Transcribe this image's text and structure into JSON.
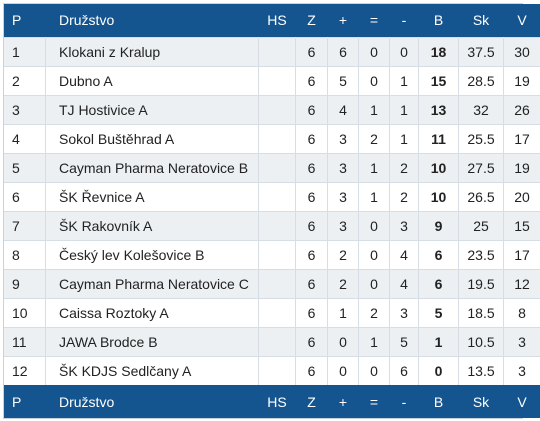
{
  "headers": {
    "p": "P",
    "team": "Družstvo",
    "hs": "HS",
    "z": "Z",
    "w": "+",
    "d": "=",
    "l": "-",
    "b": "B",
    "sk": "Sk",
    "v": "V"
  },
  "rows": [
    {
      "p": "1",
      "team": "Klokani z Kralup",
      "hs": "",
      "z": "6",
      "w": "6",
      "d": "0",
      "l": "0",
      "b": "18",
      "sk": "37.5",
      "v": "30"
    },
    {
      "p": "2",
      "team": "Dubno A",
      "hs": "",
      "z": "6",
      "w": "5",
      "d": "0",
      "l": "1",
      "b": "15",
      "sk": "28.5",
      "v": "19"
    },
    {
      "p": "3",
      "team": "TJ Hostivice A",
      "hs": "",
      "z": "6",
      "w": "4",
      "d": "1",
      "l": "1",
      "b": "13",
      "sk": "32",
      "v": "26"
    },
    {
      "p": "4",
      "team": "Sokol Buštěhrad A",
      "hs": "",
      "z": "6",
      "w": "3",
      "d": "2",
      "l": "1",
      "b": "11",
      "sk": "25.5",
      "v": "17"
    },
    {
      "p": "5",
      "team": "Cayman Pharma Neratovice B",
      "hs": "",
      "z": "6",
      "w": "3",
      "d": "1",
      "l": "2",
      "b": "10",
      "sk": "27.5",
      "v": "19"
    },
    {
      "p": "6",
      "team": "ŠK Řevnice A",
      "hs": "",
      "z": "6",
      "w": "3",
      "d": "1",
      "l": "2",
      "b": "10",
      "sk": "26.5",
      "v": "20"
    },
    {
      "p": "7",
      "team": "ŠK Rakovník A",
      "hs": "",
      "z": "6",
      "w": "3",
      "d": "0",
      "l": "3",
      "b": "9",
      "sk": "25",
      "v": "15"
    },
    {
      "p": "8",
      "team": "Český lev Kolešovice B",
      "hs": "",
      "z": "6",
      "w": "2",
      "d": "0",
      "l": "4",
      "b": "6",
      "sk": "23.5",
      "v": "17"
    },
    {
      "p": "9",
      "team": "Cayman Pharma Neratovice C",
      "hs": "",
      "z": "6",
      "w": "2",
      "d": "0",
      "l": "4",
      "b": "6",
      "sk": "19.5",
      "v": "12"
    },
    {
      "p": "10",
      "team": "Caissa Roztoky A",
      "hs": "",
      "z": "6",
      "w": "1",
      "d": "2",
      "l": "3",
      "b": "5",
      "sk": "18.5",
      "v": "8"
    },
    {
      "p": "11",
      "team": "JAWA Brodce B",
      "hs": "",
      "z": "6",
      "w": "0",
      "d": "1",
      "l": "5",
      "b": "1",
      "sk": "10.5",
      "v": "3"
    },
    {
      "p": "12",
      "team": "ŠK KDJS Sedlčany A",
      "hs": "",
      "z": "6",
      "w": "0",
      "d": "0",
      "l": "6",
      "b": "0",
      "sk": "13.5",
      "v": "3"
    }
  ],
  "colors": {
    "header_bg": "#15558f",
    "row_alt_bg": "#edf0f3"
  }
}
